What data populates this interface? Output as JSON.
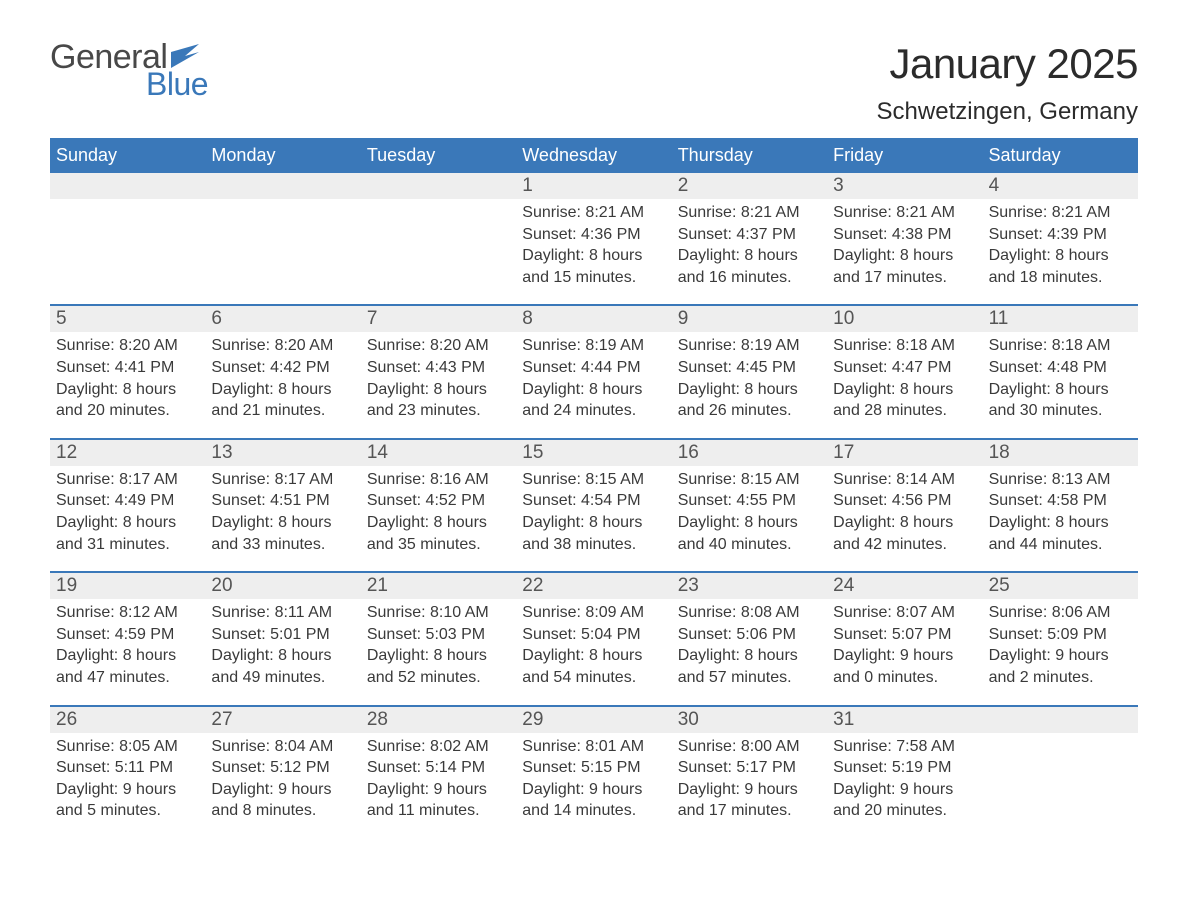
{
  "logo": {
    "text_general": "General",
    "text_blue": "Blue",
    "flag_color": "#3a78b9"
  },
  "title": "January 2025",
  "location": "Schwetzingen, Germany",
  "colors": {
    "header_bg": "#3a78b9",
    "header_text": "#ffffff",
    "daynum_bg": "#eeeeee",
    "separator": "#3a78b9",
    "body_text": "#3a3a3a",
    "daynum_text": "#555555",
    "page_bg": "#ffffff"
  },
  "typography": {
    "title_fontsize": 42,
    "location_fontsize": 24,
    "weekday_fontsize": 18,
    "daynum_fontsize": 19,
    "detail_fontsize": 16
  },
  "weekdays": [
    "Sunday",
    "Monday",
    "Tuesday",
    "Wednesday",
    "Thursday",
    "Friday",
    "Saturday"
  ],
  "weeks": [
    {
      "nums": [
        "",
        "",
        "",
        "1",
        "2",
        "3",
        "4"
      ],
      "details": [
        [],
        [],
        [],
        [
          "Sunrise: 8:21 AM",
          "Sunset: 4:36 PM",
          "Daylight: 8 hours",
          "and 15 minutes."
        ],
        [
          "Sunrise: 8:21 AM",
          "Sunset: 4:37 PM",
          "Daylight: 8 hours",
          "and 16 minutes."
        ],
        [
          "Sunrise: 8:21 AM",
          "Sunset: 4:38 PM",
          "Daylight: 8 hours",
          "and 17 minutes."
        ],
        [
          "Sunrise: 8:21 AM",
          "Sunset: 4:39 PM",
          "Daylight: 8 hours",
          "and 18 minutes."
        ]
      ]
    },
    {
      "nums": [
        "5",
        "6",
        "7",
        "8",
        "9",
        "10",
        "11"
      ],
      "details": [
        [
          "Sunrise: 8:20 AM",
          "Sunset: 4:41 PM",
          "Daylight: 8 hours",
          "and 20 minutes."
        ],
        [
          "Sunrise: 8:20 AM",
          "Sunset: 4:42 PM",
          "Daylight: 8 hours",
          "and 21 minutes."
        ],
        [
          "Sunrise: 8:20 AM",
          "Sunset: 4:43 PM",
          "Daylight: 8 hours",
          "and 23 minutes."
        ],
        [
          "Sunrise: 8:19 AM",
          "Sunset: 4:44 PM",
          "Daylight: 8 hours",
          "and 24 minutes."
        ],
        [
          "Sunrise: 8:19 AM",
          "Sunset: 4:45 PM",
          "Daylight: 8 hours",
          "and 26 minutes."
        ],
        [
          "Sunrise: 8:18 AM",
          "Sunset: 4:47 PM",
          "Daylight: 8 hours",
          "and 28 minutes."
        ],
        [
          "Sunrise: 8:18 AM",
          "Sunset: 4:48 PM",
          "Daylight: 8 hours",
          "and 30 minutes."
        ]
      ]
    },
    {
      "nums": [
        "12",
        "13",
        "14",
        "15",
        "16",
        "17",
        "18"
      ],
      "details": [
        [
          "Sunrise: 8:17 AM",
          "Sunset: 4:49 PM",
          "Daylight: 8 hours",
          "and 31 minutes."
        ],
        [
          "Sunrise: 8:17 AM",
          "Sunset: 4:51 PM",
          "Daylight: 8 hours",
          "and 33 minutes."
        ],
        [
          "Sunrise: 8:16 AM",
          "Sunset: 4:52 PM",
          "Daylight: 8 hours",
          "and 35 minutes."
        ],
        [
          "Sunrise: 8:15 AM",
          "Sunset: 4:54 PM",
          "Daylight: 8 hours",
          "and 38 minutes."
        ],
        [
          "Sunrise: 8:15 AM",
          "Sunset: 4:55 PM",
          "Daylight: 8 hours",
          "and 40 minutes."
        ],
        [
          "Sunrise: 8:14 AM",
          "Sunset: 4:56 PM",
          "Daylight: 8 hours",
          "and 42 minutes."
        ],
        [
          "Sunrise: 8:13 AM",
          "Sunset: 4:58 PM",
          "Daylight: 8 hours",
          "and 44 minutes."
        ]
      ]
    },
    {
      "nums": [
        "19",
        "20",
        "21",
        "22",
        "23",
        "24",
        "25"
      ],
      "details": [
        [
          "Sunrise: 8:12 AM",
          "Sunset: 4:59 PM",
          "Daylight: 8 hours",
          "and 47 minutes."
        ],
        [
          "Sunrise: 8:11 AM",
          "Sunset: 5:01 PM",
          "Daylight: 8 hours",
          "and 49 minutes."
        ],
        [
          "Sunrise: 8:10 AM",
          "Sunset: 5:03 PM",
          "Daylight: 8 hours",
          "and 52 minutes."
        ],
        [
          "Sunrise: 8:09 AM",
          "Sunset: 5:04 PM",
          "Daylight: 8 hours",
          "and 54 minutes."
        ],
        [
          "Sunrise: 8:08 AM",
          "Sunset: 5:06 PM",
          "Daylight: 8 hours",
          "and 57 minutes."
        ],
        [
          "Sunrise: 8:07 AM",
          "Sunset: 5:07 PM",
          "Daylight: 9 hours",
          "and 0 minutes."
        ],
        [
          "Sunrise: 8:06 AM",
          "Sunset: 5:09 PM",
          "Daylight: 9 hours",
          "and 2 minutes."
        ]
      ]
    },
    {
      "nums": [
        "26",
        "27",
        "28",
        "29",
        "30",
        "31",
        ""
      ],
      "details": [
        [
          "Sunrise: 8:05 AM",
          "Sunset: 5:11 PM",
          "Daylight: 9 hours",
          "and 5 minutes."
        ],
        [
          "Sunrise: 8:04 AM",
          "Sunset: 5:12 PM",
          "Daylight: 9 hours",
          "and 8 minutes."
        ],
        [
          "Sunrise: 8:02 AM",
          "Sunset: 5:14 PM",
          "Daylight: 9 hours",
          "and 11 minutes."
        ],
        [
          "Sunrise: 8:01 AM",
          "Sunset: 5:15 PM",
          "Daylight: 9 hours",
          "and 14 minutes."
        ],
        [
          "Sunrise: 8:00 AM",
          "Sunset: 5:17 PM",
          "Daylight: 9 hours",
          "and 17 minutes."
        ],
        [
          "Sunrise: 7:58 AM",
          "Sunset: 5:19 PM",
          "Daylight: 9 hours",
          "and 20 minutes."
        ],
        []
      ]
    }
  ]
}
